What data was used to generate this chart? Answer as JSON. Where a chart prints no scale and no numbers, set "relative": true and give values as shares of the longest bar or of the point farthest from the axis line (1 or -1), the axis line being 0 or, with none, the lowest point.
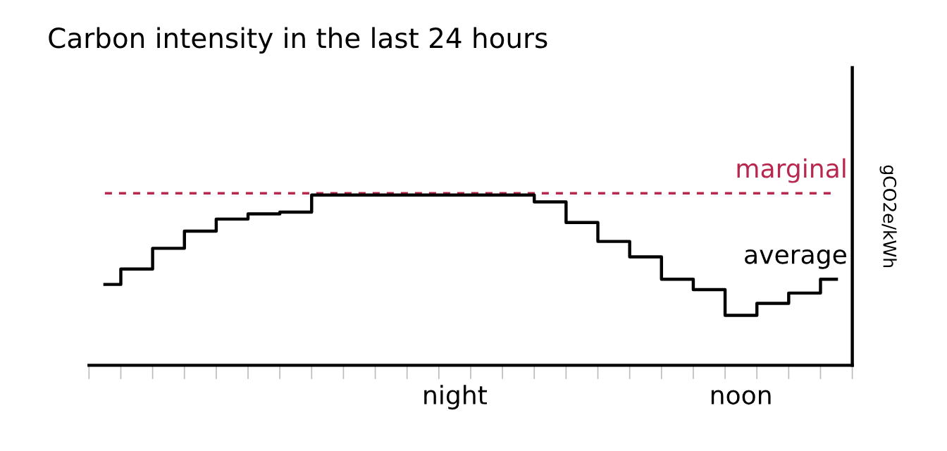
{
  "chart_data": {
    "type": "step",
    "title": "Carbon intensity in the last 24 hours",
    "y2label": "gCO2e/kWh",
    "relative": true,
    "categories": [
      null,
      null,
      null,
      null,
      null,
      null,
      null,
      null,
      null,
      null,
      null,
      "night",
      null,
      null,
      null,
      null,
      null,
      null,
      null,
      null,
      "noon",
      null,
      null,
      null
    ],
    "series": [
      {
        "name": "marginal",
        "color": "#b8284e",
        "line_style": "dashed",
        "values": [
          1,
          1,
          1,
          1,
          1,
          1,
          1,
          1,
          1,
          1,
          1,
          1,
          1,
          1,
          1,
          1,
          1,
          1,
          1,
          1,
          1,
          1,
          1,
          1
        ]
      },
      {
        "name": "average",
        "color": "#000000",
        "values": [
          0.47,
          0.56,
          0.68,
          0.78,
          0.85,
          0.88,
          0.89,
          0.99,
          0.99,
          0.99,
          0.99,
          0.99,
          0.99,
          0.99,
          0.95,
          0.83,
          0.72,
          0.63,
          0.5,
          0.44,
          0.29,
          0.36,
          0.42,
          0.5
        ]
      }
    ],
    "grid": false,
    "legend": false
  }
}
